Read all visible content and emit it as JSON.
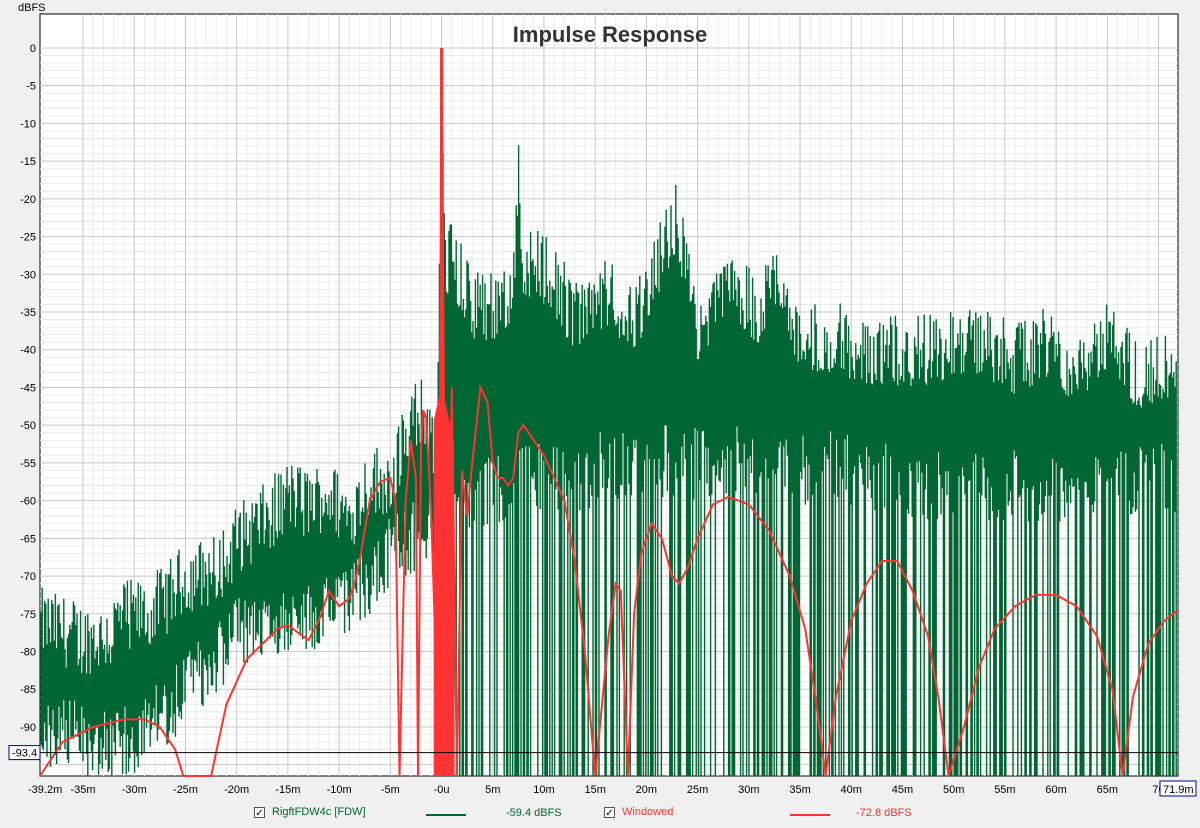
{
  "chart_data": {
    "type": "line",
    "title": "Impulse Response",
    "ylabel": "dBFS",
    "xlabel": "",
    "xlim": [
      -39.2,
      71.9
    ],
    "ylim": [
      -96.5,
      4.5
    ],
    "y_ticks": [
      0,
      -5,
      -10,
      -15,
      -20,
      -25,
      -30,
      -35,
      -40,
      -45,
      -50,
      -55,
      -60,
      -65,
      -70,
      -75,
      -80,
      -85,
      -90
    ],
    "x_ticks": [
      {
        "v": -39.2,
        "label": "-39.2m"
      },
      {
        "v": -35,
        "label": "-35m"
      },
      {
        "v": -30,
        "label": "-30m"
      },
      {
        "v": -25,
        "label": "-25m"
      },
      {
        "v": -20,
        "label": "-20m"
      },
      {
        "v": -15,
        "label": "-15m"
      },
      {
        "v": -10,
        "label": "-10m"
      },
      {
        "v": -5,
        "label": "-5m"
      },
      {
        "v": 0,
        "label": "-0u"
      },
      {
        "v": 5,
        "label": "5m"
      },
      {
        "v": 10,
        "label": "10m"
      },
      {
        "v": 15,
        "label": "15m"
      },
      {
        "v": 20,
        "label": "20m"
      },
      {
        "v": 25,
        "label": "25m"
      },
      {
        "v": 30,
        "label": "30m"
      },
      {
        "v": 35,
        "label": "35m"
      },
      {
        "v": 40,
        "label": "40m"
      },
      {
        "v": 45,
        "label": "45m"
      },
      {
        "v": 50,
        "label": "50m"
      },
      {
        "v": 55,
        "label": "55m"
      },
      {
        "v": 60,
        "label": "60m"
      },
      {
        "v": 65,
        "label": "65m"
      },
      {
        "v": 70,
        "label": "70"
      }
    ],
    "x_end_label": "71.9m",
    "cursor_value_label": "-93.4",
    "cursor_y": -93.4,
    "grid": true,
    "series": [
      {
        "name": "RigftFDW4c [FDW]",
        "color": "#006633",
        "style": "dense-impulse",
        "envelope": [
          [
            -39.2,
            -75
          ],
          [
            -37,
            -76
          ],
          [
            -35,
            -77
          ],
          [
            -33,
            -77
          ],
          [
            -31,
            -74
          ],
          [
            -29,
            -74
          ],
          [
            -27,
            -72
          ],
          [
            -25,
            -69
          ],
          [
            -22,
            -68
          ],
          [
            -20,
            -64
          ],
          [
            -17,
            -61
          ],
          [
            -15,
            -58
          ],
          [
            -13,
            -59
          ],
          [
            -11,
            -58
          ],
          [
            -9,
            -61
          ],
          [
            -7,
            -56
          ],
          [
            -5,
            -56
          ],
          [
            -3,
            -48
          ],
          [
            -1.5,
            -47
          ],
          [
            -0.5,
            -55
          ],
          [
            0,
            0
          ],
          [
            0.3,
            -27
          ],
          [
            1,
            -26
          ],
          [
            3,
            -33
          ],
          [
            5,
            -33
          ],
          [
            7,
            -30
          ],
          [
            7.5,
            -15
          ],
          [
            8,
            -27
          ],
          [
            10,
            -28
          ],
          [
            13,
            -34
          ],
          [
            16,
            -31
          ],
          [
            19,
            -35
          ],
          [
            22,
            -24
          ],
          [
            23,
            -21
          ],
          [
            25,
            -37
          ],
          [
            28,
            -30
          ],
          [
            31,
            -34
          ],
          [
            33,
            -28
          ],
          [
            35,
            -38
          ],
          [
            38,
            -37
          ],
          [
            40,
            -38
          ],
          [
            43,
            -39
          ],
          [
            46,
            -39
          ],
          [
            50,
            -38
          ],
          [
            53,
            -38
          ],
          [
            56,
            -40
          ],
          [
            59,
            -38
          ],
          [
            62,
            -41
          ],
          [
            65,
            -37
          ],
          [
            68,
            -42
          ],
          [
            71.9,
            -40
          ]
        ],
        "floor": [
          [
            -39.2,
            -86
          ],
          [
            -30,
            -87
          ],
          [
            -25,
            -80
          ],
          [
            -20,
            -73
          ],
          [
            -15,
            -70
          ],
          [
            -10,
            -70
          ],
          [
            -5,
            -62
          ],
          [
            -1,
            -58
          ],
          [
            0,
            -60
          ],
          [
            2,
            -55
          ],
          [
            10,
            -52
          ],
          [
            20,
            -50
          ],
          [
            30,
            -50
          ],
          [
            40,
            -51
          ],
          [
            50,
            -53
          ],
          [
            60,
            -53
          ],
          [
            71.9,
            -52
          ]
        ],
        "legend_value": "-59.4 dBFS"
      },
      {
        "name": "Windowed",
        "color": "#ff3333",
        "style": "line",
        "points": [
          [
            -39.2,
            -97
          ],
          [
            -37,
            -92
          ],
          [
            -34,
            -90
          ],
          [
            -31,
            -89
          ],
          [
            -29,
            -89
          ],
          [
            -27.5,
            -90
          ],
          [
            -26,
            -93
          ],
          [
            -25.2,
            -97
          ],
          [
            -22.5,
            -97
          ],
          [
            -21,
            -87
          ],
          [
            -19,
            -81
          ],
          [
            -17.5,
            -79
          ],
          [
            -16,
            -77
          ],
          [
            -15,
            -76.5
          ],
          [
            -14,
            -77.5
          ],
          [
            -13,
            -78.5
          ],
          [
            -12,
            -76
          ],
          [
            -11,
            -72
          ],
          [
            -10,
            -74
          ],
          [
            -9,
            -73
          ],
          [
            -8.5,
            -71
          ],
          [
            -8,
            -68
          ],
          [
            -7,
            -60
          ],
          [
            -6,
            -57.5
          ],
          [
            -5,
            -57
          ],
          [
            -4.5,
            -60
          ],
          [
            -4.1,
            -97
          ],
          [
            -3.5,
            -60
          ],
          [
            -3,
            -52
          ],
          [
            -2.5,
            -57
          ],
          [
            -2.3,
            -97
          ],
          [
            -2,
            -53
          ],
          [
            -1.8,
            -48
          ],
          [
            -1.5,
            -49
          ],
          [
            -1,
            -62
          ],
          [
            -0.7,
            -75
          ],
          [
            -0.3,
            -97
          ],
          [
            0,
            0
          ],
          [
            0.5,
            -97
          ],
          [
            1,
            -45
          ],
          [
            1.5,
            -97
          ],
          [
            2,
            -56
          ],
          [
            2.5,
            -62
          ],
          [
            3,
            -55
          ],
          [
            3.8,
            -45
          ],
          [
            4.5,
            -47
          ],
          [
            5,
            -55
          ],
          [
            5.5,
            -57
          ],
          [
            6,
            -57
          ],
          [
            6.5,
            -58
          ],
          [
            7,
            -57
          ],
          [
            7.5,
            -51
          ],
          [
            8,
            -50
          ],
          [
            9,
            -52
          ],
          [
            10,
            -54
          ],
          [
            11,
            -57
          ],
          [
            12,
            -60
          ],
          [
            13,
            -68
          ],
          [
            14,
            -80
          ],
          [
            15,
            -97
          ],
          [
            16.3,
            -78
          ],
          [
            17,
            -71
          ],
          [
            17.5,
            -72
          ],
          [
            18.2,
            -97
          ],
          [
            18.8,
            -75
          ],
          [
            19.5,
            -67
          ],
          [
            20.5,
            -63
          ],
          [
            21.5,
            -65
          ],
          [
            22.5,
            -70
          ],
          [
            23.2,
            -71
          ],
          [
            24,
            -69
          ],
          [
            25,
            -65
          ],
          [
            26.5,
            -60.5
          ],
          [
            28,
            -59.5
          ],
          [
            30,
            -60.5
          ],
          [
            32,
            -64
          ],
          [
            34,
            -70
          ],
          [
            35.5,
            -77
          ],
          [
            36.5,
            -86
          ],
          [
            37.5,
            -97
          ],
          [
            38.5,
            -86
          ],
          [
            40,
            -76
          ],
          [
            41.5,
            -71
          ],
          [
            43,
            -68
          ],
          [
            44.5,
            -68
          ],
          [
            46,
            -72
          ],
          [
            47.5,
            -78
          ],
          [
            48.5,
            -86
          ],
          [
            49.5,
            -97
          ],
          [
            51,
            -90
          ],
          [
            52.5,
            -82
          ],
          [
            54,
            -77
          ],
          [
            56,
            -74
          ],
          [
            58,
            -72.5
          ],
          [
            60,
            -72.5
          ],
          [
            62,
            -74
          ],
          [
            64,
            -78
          ],
          [
            65.5,
            -85
          ],
          [
            66.5,
            -97
          ],
          [
            67.5,
            -86
          ],
          [
            69,
            -79
          ],
          [
            70.5,
            -76
          ],
          [
            71.9,
            -74.5
          ]
        ],
        "legend_value": "-72.8 dBFS"
      }
    ]
  },
  "legend": {
    "items": [
      {
        "label": "RigftFDW4c [FDW]",
        "value": "-59.4 dBFS",
        "color": "#006633",
        "checked": "✓"
      },
      {
        "label": "Windowed",
        "value": "-72.8 dBFS",
        "color": "#ff3333",
        "checked": "✓"
      }
    ]
  }
}
